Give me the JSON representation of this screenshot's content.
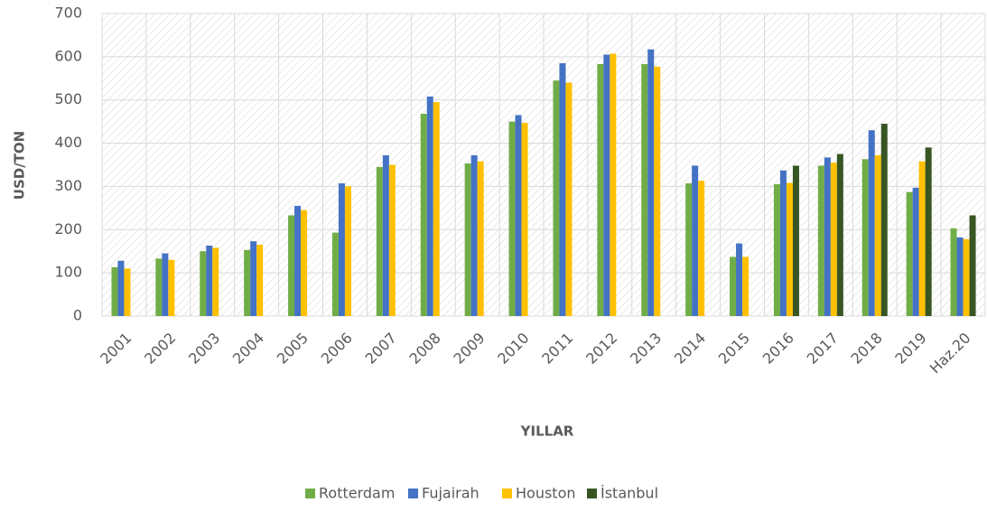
{
  "chart_data": {
    "type": "bar",
    "x_label": "YILLAR",
    "y_label": "USD/TON",
    "categories": [
      "2001",
      "2002",
      "2003",
      "2004",
      "2005",
      "2006",
      "2007",
      "2008",
      "2009",
      "2010",
      "2011",
      "2012",
      "2013",
      "2014",
      "2015",
      "2016",
      "2017",
      "2018",
      "2019",
      "Haz.20"
    ],
    "series": [
      {
        "name": "Rotterdam",
        "color": "#70ad47",
        "values": [
          113,
          133,
          150,
          153,
          233,
          193,
          345,
          468,
          353,
          450,
          545,
          583,
          583,
          307,
          137,
          305,
          348,
          363,
          287,
          203
        ]
      },
      {
        "name": "Fujairah",
        "color": "#4472c4",
        "values": [
          128,
          145,
          163,
          173,
          255,
          307,
          372,
          508,
          372,
          465,
          585,
          605,
          617,
          348,
          168,
          337,
          367,
          430,
          297,
          182
        ]
      },
      {
        "name": "Houston",
        "color": "#ffc000",
        "values": [
          110,
          130,
          158,
          165,
          245,
          300,
          350,
          495,
          358,
          447,
          540,
          607,
          577,
          313,
          137,
          308,
          355,
          372,
          358,
          178
        ]
      },
      {
        "name": "İstanbul",
        "color": "#375623",
        "values": [
          null,
          null,
          null,
          null,
          null,
          null,
          null,
          null,
          null,
          null,
          null,
          null,
          null,
          null,
          null,
          348,
          375,
          445,
          390,
          233
        ]
      }
    ],
    "ylim": [
      0,
      700
    ],
    "yticks": [
      0,
      100,
      200,
      300,
      400,
      500,
      600,
      700
    ],
    "grid": true,
    "legend": "bottom"
  }
}
